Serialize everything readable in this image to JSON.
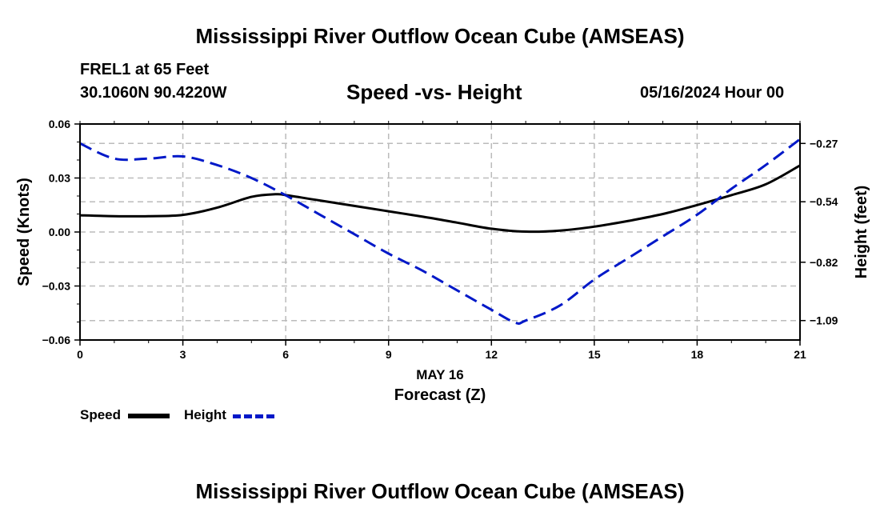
{
  "header": {
    "title": "Mississippi River Outflow Ocean Cube (AMSEAS)",
    "station": "FREL1 at 65 Feet",
    "coordinates": "30.1060N  90.4220W",
    "subtitle": "Speed -vs- Height",
    "datetime": "05/16/2024 Hour 00"
  },
  "footer": {
    "title": "Mississippi River Outflow Ocean Cube (AMSEAS)"
  },
  "legend": {
    "speed_label": "Speed",
    "height_label": "Height"
  },
  "colors": {
    "speed": "#000000",
    "height": "#0018c8",
    "grid": "#bbbbbb"
  },
  "chart_data": {
    "type": "line",
    "title": "Speed -vs- Height",
    "xlabel": "Forecast (Z)",
    "xlabel_date": "MAY 16",
    "ylabel_left": "Speed (Knots)",
    "ylabel_right": "Height (feet)",
    "xlim": [
      0,
      21
    ],
    "ylim_left": [
      -0.06,
      0.06
    ],
    "ylim_right": [
      -1.18,
      -0.18
    ],
    "x_ticks": [
      0,
      3,
      6,
      9,
      12,
      15,
      18,
      21
    ],
    "x_tick_labels": [
      "0",
      "3",
      "6",
      "9",
      "12",
      "15",
      "18",
      "21"
    ],
    "left_ticks": [
      0.06,
      0.03,
      0.0,
      -0.03,
      -0.06
    ],
    "left_tick_labels": [
      "0.06",
      "0.03",
      "0.00",
      "−0.03",
      "−0.06"
    ],
    "right_ticks": [
      -0.27,
      -0.54,
      -0.82,
      -1.09
    ],
    "right_tick_labels": [
      "−0.27",
      "−0.54",
      "−0.82",
      "−1.09"
    ],
    "grid": true,
    "series": [
      {
        "name": "Speed",
        "axis": "left",
        "style": "solid",
        "x": [
          0,
          1,
          2,
          3,
          4,
          5,
          5.7,
          6,
          7,
          8,
          9,
          10,
          11,
          12,
          13,
          14,
          15,
          16,
          17,
          18,
          19,
          20,
          21
        ],
        "values": [
          0.0093,
          0.0088,
          0.0088,
          0.0095,
          0.0135,
          0.0195,
          0.021,
          0.0205,
          0.0175,
          0.0145,
          0.0115,
          0.0085,
          0.0052,
          0.0018,
          0.0002,
          0.0008,
          0.003,
          0.0062,
          0.01,
          0.015,
          0.0205,
          0.0265,
          0.037
        ]
      },
      {
        "name": "Height",
        "axis": "right",
        "style": "dashed",
        "x": [
          0,
          1,
          2,
          3,
          4,
          5,
          6,
          7,
          8,
          9,
          10,
          11,
          12,
          12.7,
          13,
          14,
          15,
          16,
          17,
          18,
          19,
          20,
          21
        ],
        "values": [
          -0.27,
          -0.34,
          -0.34,
          -0.33,
          -0.37,
          -0.43,
          -0.51,
          -0.6,
          -0.69,
          -0.78,
          -0.86,
          -0.95,
          -1.04,
          -1.1,
          -1.09,
          -1.02,
          -0.9,
          -0.8,
          -0.7,
          -0.6,
          -0.48,
          -0.37,
          -0.25
        ]
      }
    ]
  }
}
